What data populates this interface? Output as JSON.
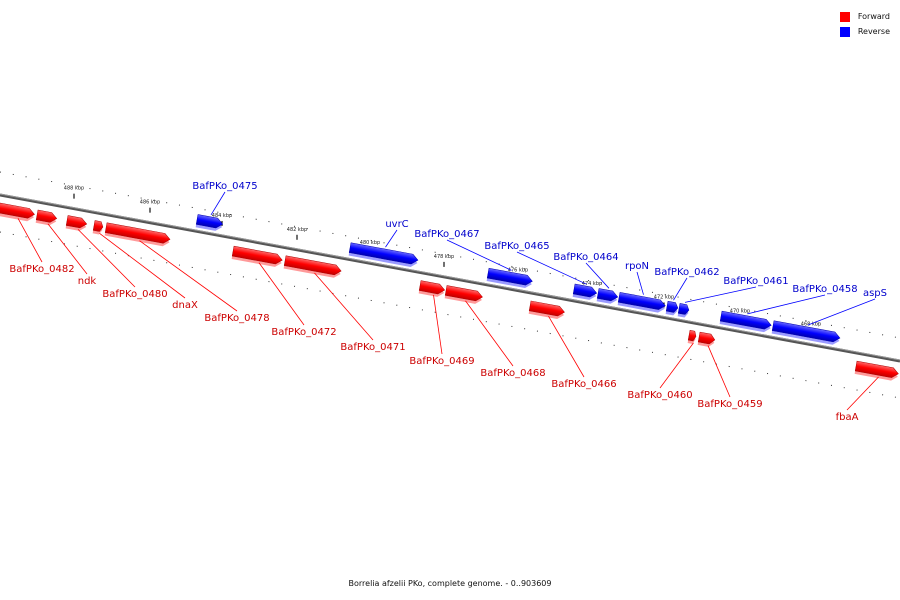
{
  "legend": [
    {
      "label": "Forward",
      "color": "#ff0000"
    },
    {
      "label": "Reverse",
      "color": "#0000ff"
    }
  ],
  "caption": "Borrelia afzelii PKo, complete genome. - 0..903609",
  "axis_ticks": [
    "488 kbp",
    "486 kbp",
    "484 kbp",
    "482 kbp",
    "480 kbp",
    "478 kbp",
    "476 kbp",
    "474 kbp",
    "472 kbp",
    "470 kbp",
    "468 kbp"
  ],
  "genes": [
    {
      "label": "BafPKo_0482",
      "strand": "forward"
    },
    {
      "label": "ndk",
      "strand": "forward"
    },
    {
      "label": "BafPKo_0480",
      "strand": "forward"
    },
    {
      "label": "dnaX",
      "strand": "forward"
    },
    {
      "label": "BafPKo_0478",
      "strand": "forward"
    },
    {
      "label": "BafPKo_0475",
      "strand": "reverse"
    },
    {
      "label": "BafPKo_0472",
      "strand": "forward"
    },
    {
      "label": "BafPKo_0471",
      "strand": "forward"
    },
    {
      "label": "uvrC",
      "strand": "reverse"
    },
    {
      "label": "BafPKo_0469",
      "strand": "forward"
    },
    {
      "label": "BafPKo_0468",
      "strand": "forward"
    },
    {
      "label": "BafPKo_0467",
      "strand": "reverse"
    },
    {
      "label": "BafPKo_0466",
      "strand": "forward"
    },
    {
      "label": "BafPKo_0465",
      "strand": "reverse"
    },
    {
      "label": "BafPKo_0464",
      "strand": "reverse"
    },
    {
      "label": "rpoN",
      "strand": "reverse"
    },
    {
      "label": "BafPKo_0462",
      "strand": "reverse"
    },
    {
      "label": "BafPKo_0461",
      "strand": "reverse"
    },
    {
      "label": "BafPKo_0460",
      "strand": "forward"
    },
    {
      "label": "BafPKo_0459",
      "strand": "forward"
    },
    {
      "label": "BafPKo_0458",
      "strand": "reverse"
    },
    {
      "label": "aspS",
      "strand": "reverse"
    },
    {
      "label": "fbaA",
      "strand": "forward"
    }
  ]
}
